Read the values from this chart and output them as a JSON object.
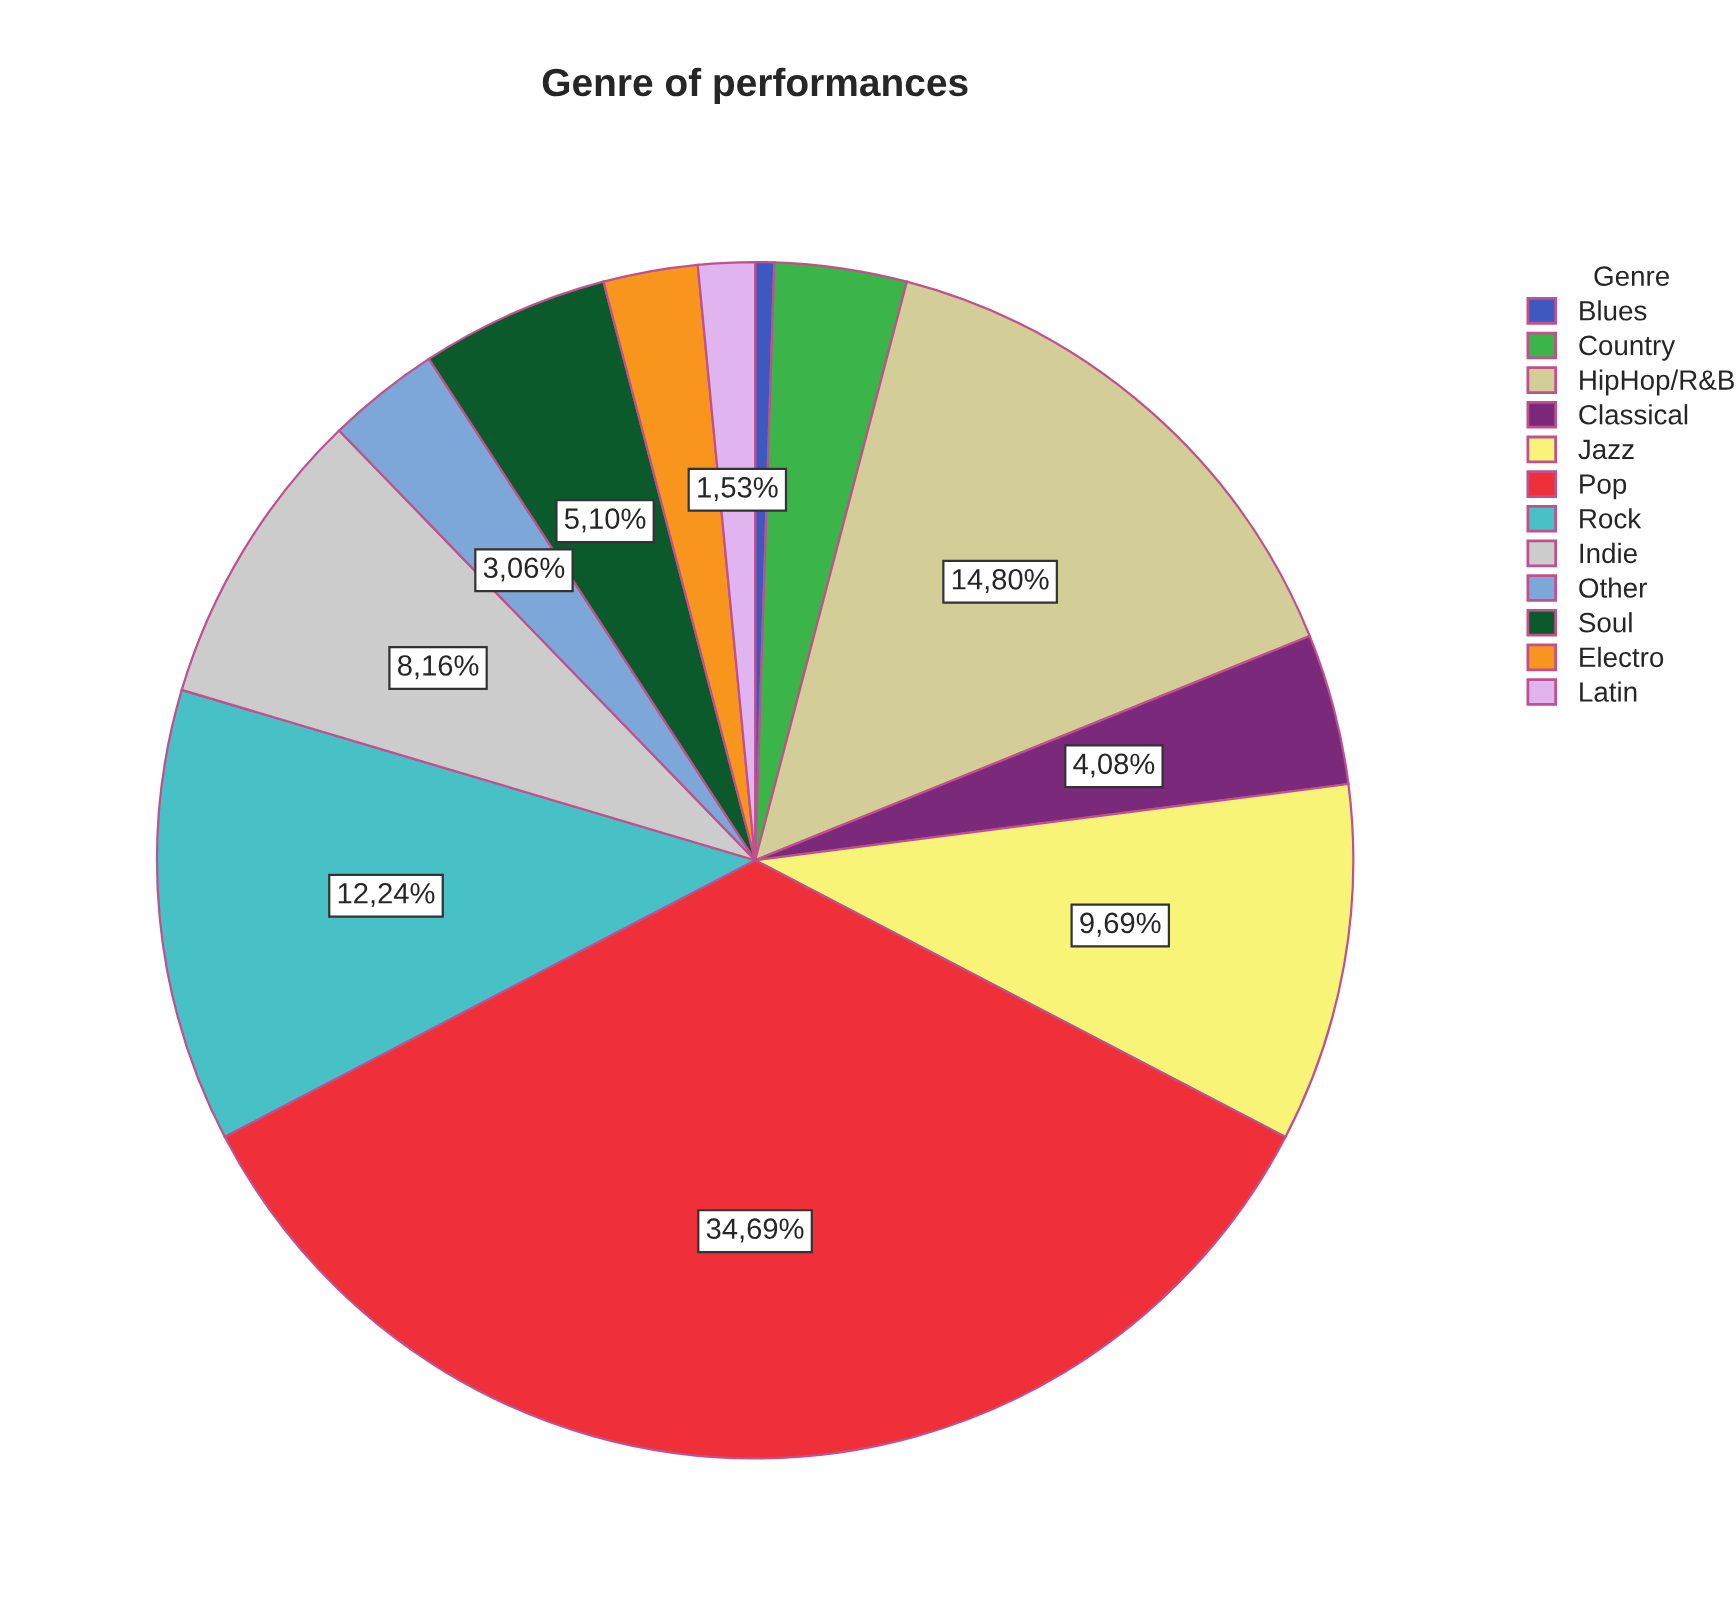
{
  "chart_data": {
    "type": "pie",
    "title": "Genre of performances",
    "legend_title": "Genre",
    "legend": "right",
    "categories": [
      "Blues",
      "Country",
      "HipHop/R&B",
      "Classical",
      "Jazz",
      "Pop",
      "Rock",
      "Indie",
      "Other",
      "Soul",
      "Electro",
      "Latin"
    ],
    "values": [
      0.51,
      3.57,
      14.8,
      4.08,
      9.69,
      34.69,
      12.24,
      8.16,
      3.06,
      5.1,
      2.55,
      1.53
    ],
    "value_labels": [
      null,
      null,
      "14,80%",
      "4,08%",
      "9,69%",
      "34,69%",
      "12,24%",
      "8,16%",
      "3,06%",
      "5,10%",
      null,
      "1,53%"
    ],
    "colors": [
      "#3e58c1",
      "#3bb54a",
      "#d3ce97",
      "#7b2a7b",
      "#f8f478",
      "#ef3038",
      "#48c1c6",
      "#cccccc",
      "#7ca7d8",
      "#0b5a2c",
      "#f8951d",
      "#e0b4ee"
    ]
  }
}
